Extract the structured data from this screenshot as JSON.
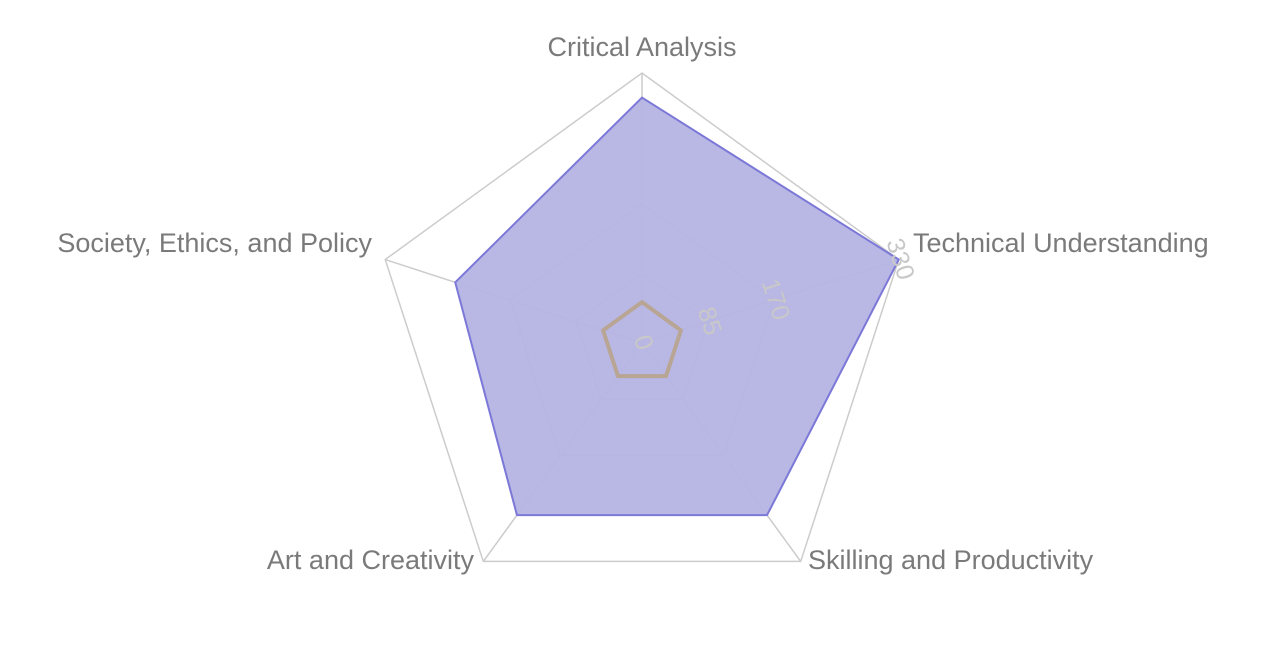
{
  "chart_data": {
    "type": "radar",
    "axes": [
      "Critical Analysis",
      "Technical Understanding",
      "Skilling and Productivity",
      "Art and Creativity",
      "Society, Ethics, and Policy"
    ],
    "ticks": [
      "0",
      "85",
      "170",
      "330"
    ],
    "tick_values": [
      0,
      85,
      170,
      330
    ],
    "grid_levels": [
      85,
      170,
      330
    ],
    "range": [
      0,
      330
    ],
    "series": [
      {
        "values": [
          300,
          330,
          260,
          260,
          240
        ],
        "color": "#7b78d8",
        "fill": "#b5b3e3"
      },
      {
        "values": [
          50,
          50,
          50,
          50,
          50
        ],
        "color": "#b8a593",
        "fill": "none"
      }
    ],
    "grid_color": "#cccccc"
  }
}
